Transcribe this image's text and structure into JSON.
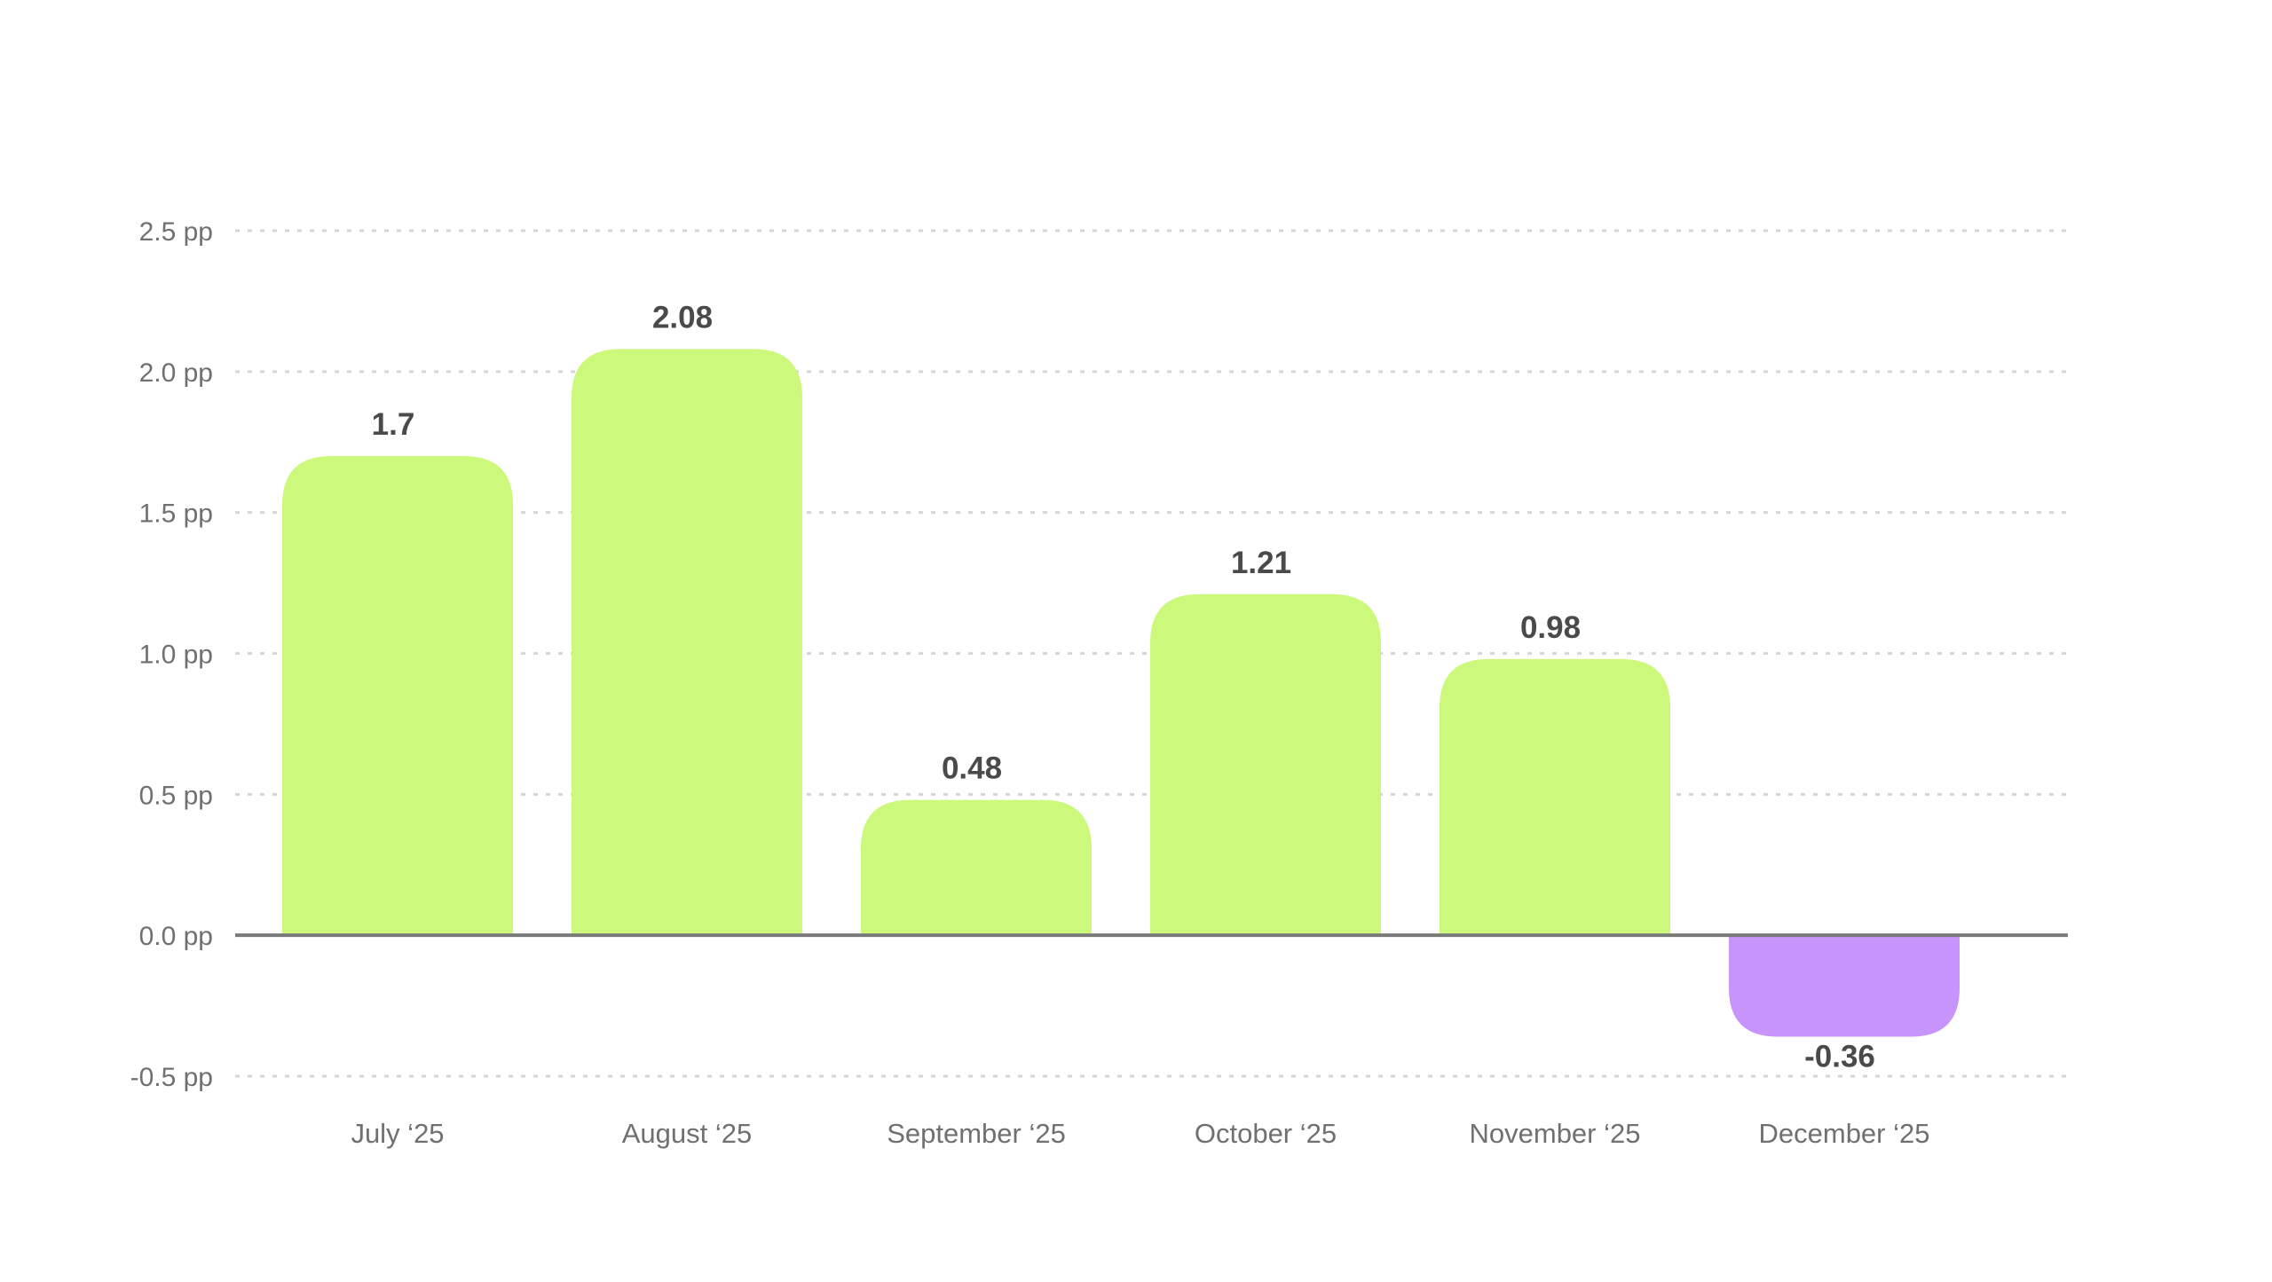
{
  "chart_data": {
    "type": "bar",
    "title": "",
    "xlabel": "",
    "ylabel": "",
    "categories": [
      "July ‘25",
      "August ‘25",
      "September ‘25",
      "October ‘25",
      "November ‘25",
      "December ‘25"
    ],
    "values": [
      1.7,
      2.08,
      0.48,
      1.21,
      0.98,
      -0.36
    ],
    "value_labels": [
      "1.7",
      "2.08",
      "0.48",
      "1.21",
      "0.98",
      "-0.36"
    ],
    "ylim": [
      -0.5,
      2.5
    ],
    "y_ticks": [
      2.5,
      2.0,
      1.5,
      1.0,
      0.5,
      0.0,
      -0.5
    ],
    "y_tick_labels": [
      "2.5 pp",
      "2.0 pp",
      "1.5 pp",
      "1.0 pp",
      "0.5 pp",
      "0.0 pp",
      "-0.5 pp"
    ],
    "grid": true,
    "legend": "none",
    "colors": {
      "positive": "#ccf87b",
      "negative": "#c794fb"
    }
  }
}
